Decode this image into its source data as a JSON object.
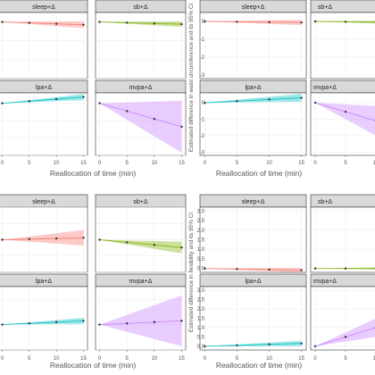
{
  "chart_data": [
    {
      "type": "line",
      "xlabel": "Reallocation of time (min)",
      "ylabel": "",
      "x": [
        0,
        5,
        10,
        15
      ],
      "xticks": [
        0,
        5,
        10,
        15
      ],
      "panels": [
        {
          "label": "sleep+Δ",
          "color": "#F8766D",
          "ylim": [
            -3,
            0.5
          ],
          "y": [
            0,
            -0.05,
            -0.1,
            -0.15
          ],
          "ci_half": [
            0,
            0.06,
            0.12,
            0.18
          ]
        },
        {
          "label": "sb+Δ",
          "color": "#7CAE00",
          "ylim": [
            -3,
            0.5
          ],
          "y": [
            0,
            -0.04,
            -0.08,
            -0.12
          ],
          "ci_half": [
            0,
            0.05,
            0.1,
            0.14
          ]
        },
        {
          "label": "lpa+Δ",
          "color": "#00BFC4",
          "ylim": [
            -3,
            0.6
          ],
          "y": [
            0,
            0.12,
            0.24,
            0.36
          ],
          "ci_half": [
            0,
            0.06,
            0.12,
            0.18
          ]
        },
        {
          "label": "mvpa+Δ",
          "color": "#C77CFF",
          "ylim": [
            -3,
            0.6
          ],
          "y": [
            0,
            -0.45,
            -0.9,
            -1.35
          ],
          "ci_half": [
            0,
            0.5,
            1.0,
            1.5
          ]
        }
      ]
    },
    {
      "type": "line",
      "xlabel": "Reallocation of time (min)",
      "ylabel": "Estimated difference in waist circumference and its 95% CI",
      "x": [
        0,
        5,
        10,
        15
      ],
      "xticks": [
        0,
        5,
        10,
        15
      ],
      "yticks": [
        0,
        -1,
        -2,
        -3
      ],
      "panels": [
        {
          "label": "sleep+Δ",
          "color": "#F8766D",
          "ylim": [
            -3.2,
            0.5
          ],
          "y": [
            0,
            -0.02,
            -0.04,
            -0.06
          ],
          "ci_half": [
            0,
            0.05,
            0.1,
            0.15
          ]
        },
        {
          "label": "sb+Δ",
          "color": "#7CAE00",
          "ylim": [
            -3.2,
            0.5
          ],
          "y": [
            0,
            -0.02,
            -0.04,
            -0.06
          ],
          "ci_half": [
            0,
            0.04,
            0.08,
            0.12
          ]
        },
        {
          "label": "lpa+Δ",
          "color": "#00BFC4",
          "ylim": [
            -3.2,
            0.6
          ],
          "y": [
            0,
            0.1,
            0.2,
            0.3
          ],
          "ci_half": [
            0,
            0.08,
            0.16,
            0.24
          ]
        },
        {
          "label": "mvpa+Δ",
          "color": "#C77CFF",
          "ylim": [
            -3.2,
            0.6
          ],
          "y": [
            0,
            -0.55,
            -1.1,
            -1.65
          ],
          "ci_half": [
            0,
            0.45,
            0.9,
            1.35
          ]
        }
      ]
    },
    {
      "type": "line",
      "xlabel": "Reallocation of time (min)",
      "ylabel": "",
      "x": [
        0,
        5,
        10,
        15
      ],
      "xticks": [
        0,
        5,
        10,
        15
      ],
      "panels": [
        {
          "label": "sleep+Δ",
          "color": "#F8766D",
          "ylim": [
            -1,
            1
          ],
          "y": [
            0,
            0.02,
            0.04,
            0.06
          ],
          "ci_half": [
            0,
            0.08,
            0.16,
            0.24
          ]
        },
        {
          "label": "sb+Δ",
          "color": "#7CAE00",
          "ylim": [
            -1,
            1
          ],
          "y": [
            0,
            -0.08,
            -0.16,
            -0.24
          ],
          "ci_half": [
            0,
            0.06,
            0.12,
            0.18
          ]
        },
        {
          "label": "lpa+Δ",
          "color": "#00BFC4",
          "ylim": [
            -1,
            1.5
          ],
          "y": [
            0,
            0.05,
            0.1,
            0.15
          ],
          "ci_half": [
            0,
            0.04,
            0.08,
            0.12
          ]
        },
        {
          "label": "mvpa+Δ",
          "color": "#C77CFF",
          "ylim": [
            -1,
            1.5
          ],
          "y": [
            0,
            0.05,
            0.1,
            0.15
          ],
          "ci_half": [
            0,
            0.33,
            0.67,
            1.0
          ]
        }
      ]
    },
    {
      "type": "line",
      "xlabel": "Reallocation of time (min)",
      "ylabel": "Estimated difference in flexibility and its 95% CI",
      "x": [
        0,
        5,
        10,
        15
      ],
      "xticks": [
        0,
        5,
        10,
        15
      ],
      "yticks": [
        0,
        0.5,
        1,
        1.5,
        2,
        2.5,
        3
      ],
      "ytick_labels": [
        "0.0",
        "0.5",
        "1.0",
        "1.5",
        "2.0",
        "2.5",
        "3.0"
      ],
      "panels": [
        {
          "label": "sleep+Δ",
          "color": "#F8766D",
          "ylim": [
            -0.2,
            3.2
          ],
          "y": [
            0,
            -0.03,
            -0.06,
            -0.09
          ],
          "ci_half": [
            0,
            0.04,
            0.08,
            0.12
          ]
        },
        {
          "label": "sb+Δ",
          "color": "#7CAE00",
          "ylim": [
            -0.2,
            3.2
          ],
          "y": [
            0,
            0,
            0,
            0
          ],
          "ci_half": [
            0,
            0.03,
            0.06,
            0.09
          ]
        },
        {
          "label": "lpa+Δ",
          "color": "#00BFC4",
          "ylim": [
            -0.2,
            3.2
          ],
          "y": [
            0,
            0.05,
            0.1,
            0.15
          ],
          "ci_half": [
            0,
            0.05,
            0.1,
            0.15
          ]
        },
        {
          "label": "mvpa+Δ",
          "color": "#C77CFF",
          "ylim": [
            -0.2,
            3.2
          ],
          "y": [
            0,
            0.5,
            1.0,
            1.5
          ],
          "ci_half": [
            0,
            0.25,
            0.5,
            0.75
          ]
        }
      ]
    }
  ]
}
